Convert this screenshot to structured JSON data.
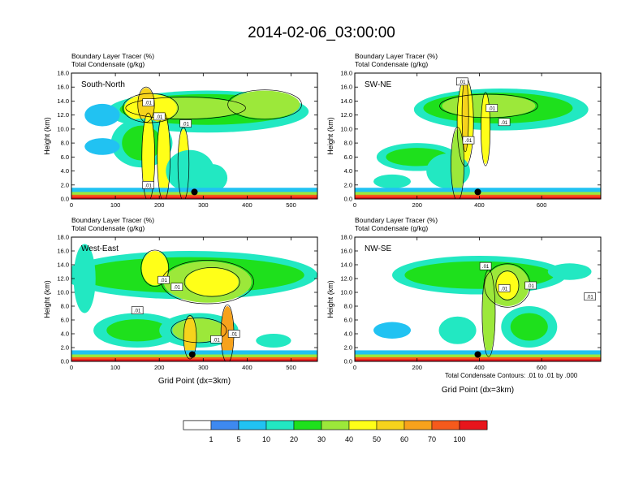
{
  "title": "2014-02-06_03:00:00",
  "colors": {
    "bins": [
      "#ffffff",
      "#3e89f0",
      "#21c2f2",
      "#22e8c2",
      "#1ee01c",
      "#9ce83a",
      "#ffff18",
      "#f6d31c",
      "#f7a21c",
      "#f55a1c",
      "#e8151c"
    ],
    "contour": "#000000",
    "frame": "#000000"
  },
  "chart_data": [
    {
      "type": "heatmap",
      "id": "south-north",
      "label": "South-North",
      "header": [
        "Boundary Layer Tracer   (%)",
        "Total Condensate   (g/kg)"
      ],
      "ylabel": "Height (km)",
      "xlabel": "",
      "xlim": [
        0,
        560
      ],
      "ylim": [
        0,
        18
      ],
      "xticks": [
        0,
        100,
        200,
        300,
        400,
        500
      ],
      "yticks": [
        "0.0",
        "2.0",
        "4.0",
        "6.0",
        "8.0",
        "10.0",
        "12.0",
        "14.0",
        "16.0",
        "18.0"
      ],
      "marker": {
        "x": 280,
        "y": 1.0
      },
      "contour_labels": [
        {
          "x": 175,
          "y": 13.8,
          "text": ".01"
        },
        {
          "x": 175,
          "y": 2.0,
          "text": ".01"
        },
        {
          "x": 200,
          "y": 11.8,
          "text": ".01"
        },
        {
          "x": 260,
          "y": 10.8,
          "text": ".01"
        }
      ],
      "blobs": [
        {
          "x": 310,
          "y": 12.5,
          "rx": 230,
          "ry": 3.0,
          "c": 3
        },
        {
          "x": 310,
          "y": 12.8,
          "rx": 200,
          "ry": 2.2,
          "c": 4
        },
        {
          "x": 260,
          "y": 13.0,
          "rx": 130,
          "ry": 1.5,
          "c": 5
        },
        {
          "x": 180,
          "y": 13.0,
          "rx": 60,
          "ry": 2.0,
          "c": 6
        },
        {
          "x": 170,
          "y": 13.5,
          "rx": 18,
          "ry": 2.4,
          "c": 7
        },
        {
          "x": 160,
          "y": 8.0,
          "rx": 70,
          "ry": 3.5,
          "c": 3
        },
        {
          "x": 160,
          "y": 8.0,
          "rx": 45,
          "ry": 2.5,
          "c": 4
        },
        {
          "x": 175,
          "y": 6.0,
          "rx": 14,
          "ry": 6.0,
          "c": 6
        },
        {
          "x": 210,
          "y": 6.0,
          "rx": 14,
          "ry": 6.0,
          "c": 6
        },
        {
          "x": 255,
          "y": 5.0,
          "rx": 12,
          "ry": 5.0,
          "c": 6
        },
        {
          "x": 270,
          "y": 4.0,
          "rx": 55,
          "ry": 3.0,
          "c": 3
        },
        {
          "x": 320,
          "y": 3.0,
          "rx": 35,
          "ry": 2.0,
          "c": 3
        },
        {
          "x": 70,
          "y": 12.0,
          "rx": 40,
          "ry": 1.6,
          "c": 2
        },
        {
          "x": 70,
          "y": 7.5,
          "rx": 40,
          "ry": 1.2,
          "c": 2
        },
        {
          "x": 440,
          "y": 13.5,
          "rx": 80,
          "ry": 2.0,
          "c": 5
        }
      ]
    },
    {
      "type": "heatmap",
      "id": "sw-ne",
      "label": "SW-NE",
      "header": [
        "Boundary Layer Tracer   (%)",
        "Total Condensate   (g/kg)"
      ],
      "ylabel": "Height (km)",
      "xlabel": "",
      "xlim": [
        0,
        790
      ],
      "ylim": [
        0,
        18
      ],
      "xticks": [
        0,
        200,
        400,
        600
      ],
      "yticks": [
        "0.0",
        "2.0",
        "4.0",
        "6.0",
        "8.0",
        "10.0",
        "12.0",
        "14.0",
        "16.0",
        "18.0"
      ],
      "marker": {
        "x": 395,
        "y": 1.0
      },
      "contour_labels": [
        {
          "x": 345,
          "y": 16.8,
          "text": ".01"
        },
        {
          "x": 440,
          "y": 13.0,
          "text": ".01"
        },
        {
          "x": 480,
          "y": 11.0,
          "text": ".01"
        },
        {
          "x": 365,
          "y": 8.4,
          "text": ".01"
        }
      ],
      "blobs": [
        {
          "x": 470,
          "y": 12.8,
          "rx": 280,
          "ry": 3.0,
          "c": 3
        },
        {
          "x": 460,
          "y": 13.0,
          "rx": 240,
          "ry": 2.2,
          "c": 4
        },
        {
          "x": 430,
          "y": 13.3,
          "rx": 150,
          "ry": 1.6,
          "c": 5
        },
        {
          "x": 355,
          "y": 11.0,
          "rx": 25,
          "ry": 6.0,
          "c": 6
        },
        {
          "x": 355,
          "y": 12.0,
          "rx": 10,
          "ry": 5.0,
          "c": 7
        },
        {
          "x": 420,
          "y": 10.0,
          "rx": 14,
          "ry": 5.0,
          "c": 6
        },
        {
          "x": 200,
          "y": 6.0,
          "rx": 130,
          "ry": 2.0,
          "c": 3
        },
        {
          "x": 200,
          "y": 6.0,
          "rx": 100,
          "ry": 1.3,
          "c": 4
        },
        {
          "x": 300,
          "y": 4.0,
          "rx": 70,
          "ry": 2.5,
          "c": 3
        },
        {
          "x": 330,
          "y": 5.0,
          "rx": 20,
          "ry": 5.0,
          "c": 5
        },
        {
          "x": 120,
          "y": 2.5,
          "rx": 60,
          "ry": 1.0,
          "c": 3
        }
      ]
    },
    {
      "type": "heatmap",
      "id": "west-east",
      "label": "West-East",
      "header": [
        "Boundary Layer Tracer   (%)",
        "Total Condensate   (g/kg)"
      ],
      "ylabel": "Height (km)",
      "xlabel": "Grid Point (dx=3km)",
      "xlim": [
        0,
        560
      ],
      "ylim": [
        0,
        18
      ],
      "xticks": [
        0,
        100,
        200,
        300,
        400,
        500
      ],
      "yticks": [
        "0.0",
        "2.0",
        "4.0",
        "6.0",
        "8.0",
        "10.0",
        "12.0",
        "14.0",
        "16.0",
        "18.0"
      ],
      "marker": {
        "x": 275,
        "y": 1.0
      },
      "contour_labels": [
        {
          "x": 210,
          "y": 11.8,
          "text": ".01"
        },
        {
          "x": 240,
          "y": 10.8,
          "text": ".01"
        },
        {
          "x": 150,
          "y": 7.4,
          "text": ".01"
        },
        {
          "x": 330,
          "y": 3.2,
          "text": ".01"
        },
        {
          "x": 370,
          "y": 4.0,
          "text": ".01"
        }
      ],
      "blobs": [
        {
          "x": 270,
          "y": 12.5,
          "rx": 290,
          "ry": 3.5,
          "c": 3
        },
        {
          "x": 270,
          "y": 12.5,
          "rx": 260,
          "ry": 2.6,
          "c": 4
        },
        {
          "x": 310,
          "y": 11.5,
          "rx": 100,
          "ry": 3.0,
          "c": 5
        },
        {
          "x": 320,
          "y": 11.5,
          "rx": 60,
          "ry": 2.0,
          "c": 6
        },
        {
          "x": 190,
          "y": 13.5,
          "rx": 30,
          "ry": 2.5,
          "c": 6
        },
        {
          "x": 30,
          "y": 12.0,
          "rx": 25,
          "ry": 5.0,
          "c": 3
        },
        {
          "x": 150,
          "y": 4.5,
          "rx": 100,
          "ry": 2.5,
          "c": 3
        },
        {
          "x": 150,
          "y": 4.5,
          "rx": 70,
          "ry": 1.6,
          "c": 4
        },
        {
          "x": 290,
          "y": 4.5,
          "rx": 90,
          "ry": 2.5,
          "c": 3
        },
        {
          "x": 290,
          "y": 4.5,
          "rx": 60,
          "ry": 1.7,
          "c": 5
        },
        {
          "x": 355,
          "y": 4.0,
          "rx": 14,
          "ry": 4.0,
          "c": 8
        },
        {
          "x": 270,
          "y": 3.5,
          "rx": 14,
          "ry": 3.0,
          "c": 7
        },
        {
          "x": 460,
          "y": 3.0,
          "rx": 40,
          "ry": 1.0,
          "c": 3
        }
      ]
    },
    {
      "type": "heatmap",
      "id": "nw-se",
      "label": "NW-SE",
      "header": [
        "Boundary Layer Tracer   (%)",
        "Total Condensate   (g/kg)"
      ],
      "ylabel": "Height (km)",
      "xlabel": "Grid Point (dx=3km)",
      "xlim": [
        0,
        790
      ],
      "ylim": [
        0,
        18
      ],
      "xticks": [
        0,
        200,
        400,
        600
      ],
      "yticks": [
        "0.0",
        "2.0",
        "4.0",
        "6.0",
        "8.0",
        "10.0",
        "12.0",
        "14.0",
        "16.0",
        "18.0"
      ],
      "marker": {
        "x": 395,
        "y": 1.0
      },
      "contour_labels": [
        {
          "x": 420,
          "y": 13.8,
          "text": ".01"
        },
        {
          "x": 480,
          "y": 10.6,
          "text": ".01"
        },
        {
          "x": 565,
          "y": 11.0,
          "text": ".01"
        },
        {
          "x": 755,
          "y": 9.4,
          "text": ".01"
        }
      ],
      "blobs": [
        {
          "x": 400,
          "y": 12.5,
          "rx": 280,
          "ry": 2.8,
          "c": 3
        },
        {
          "x": 400,
          "y": 12.5,
          "rx": 240,
          "ry": 2.0,
          "c": 4
        },
        {
          "x": 490,
          "y": 11.0,
          "rx": 70,
          "ry": 3.0,
          "c": 5
        },
        {
          "x": 490,
          "y": 11.0,
          "rx": 35,
          "ry": 2.0,
          "c": 6
        },
        {
          "x": 690,
          "y": 13.0,
          "rx": 70,
          "ry": 1.2,
          "c": 3
        },
        {
          "x": 560,
          "y": 5.0,
          "rx": 90,
          "ry": 3.0,
          "c": 3
        },
        {
          "x": 560,
          "y": 5.0,
          "rx": 60,
          "ry": 2.0,
          "c": 4
        },
        {
          "x": 430,
          "y": 7.0,
          "rx": 20,
          "ry": 6.0,
          "c": 5
        },
        {
          "x": 330,
          "y": 4.5,
          "rx": 60,
          "ry": 2.0,
          "c": 3
        },
        {
          "x": 120,
          "y": 4.5,
          "rx": 60,
          "ry": 1.2,
          "c": 2
        }
      ]
    }
  ],
  "contour_note": "Total Condensate Contours: .01 to .01 by .000",
  "legend": {
    "labels": [
      "1",
      "5",
      "10",
      "20",
      "30",
      "40",
      "50",
      "60",
      "70",
      "100"
    ]
  }
}
